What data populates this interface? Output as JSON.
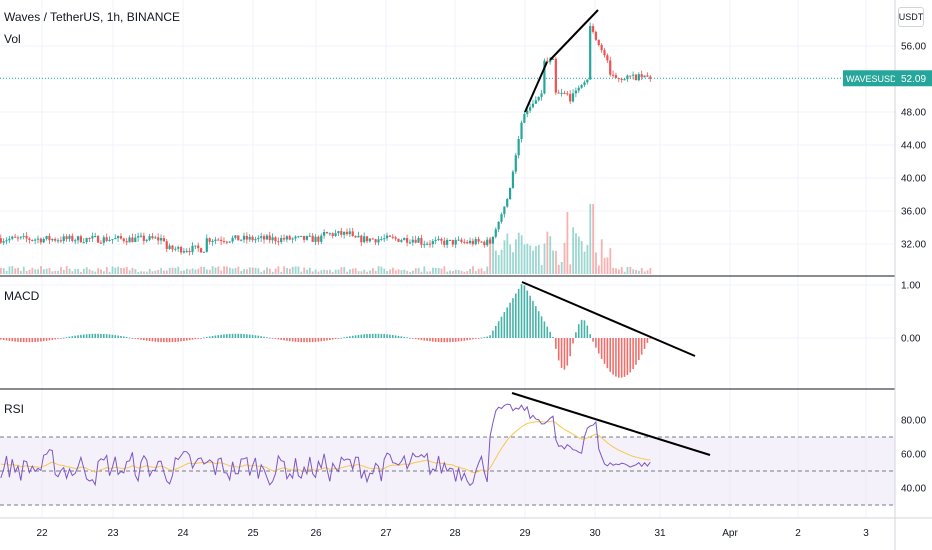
{
  "header": {
    "symbol_title": "Waves / TetherUS, 1h, BINANCE",
    "volume_label": "Vol",
    "currency_button": "USDT"
  },
  "price_pane": {
    "price_axis_labels": [
      "56.00",
      "52.00",
      "48.00",
      "44.00",
      "40.00",
      "36.00",
      "32.00"
    ],
    "current_price_tag": {
      "symbol": "WAVESUSDT",
      "price": "52.09"
    }
  },
  "macd_pane": {
    "label": "MACD",
    "axis_labels": [
      "1.00",
      "0.00"
    ]
  },
  "rsi_pane": {
    "label": "RSI",
    "axis_labels": [
      "80.00",
      "60.00",
      "40.00"
    ]
  },
  "time_axis": {
    "labels": [
      "22",
      "23",
      "24",
      "25",
      "26",
      "27",
      "28",
      "29",
      "30",
      "31",
      "Apr",
      "2",
      "3"
    ]
  },
  "colors": {
    "up": "#26a69a",
    "down": "#ef5350",
    "rsi_line": "#7e57c2",
    "rsi_ma": "#f9c74f",
    "current_price_bg": "#26a69a",
    "gridline": "#f0f3fa",
    "pane_separator": "#131722"
  },
  "chart_data": [
    {
      "type": "line",
      "title": "Waves / TetherUS, 1h, BINANCE",
      "series": [
        {
          "name": "Waves / TetherUS",
          "x": [
            "22",
            "23",
            "24",
            "25",
            "26",
            "27",
            "28",
            "29",
            "29.5",
            "30",
            "30.5",
            "31"
          ],
          "values": [
            32.9,
            32.7,
            31.2,
            31.8,
            32.4,
            33.0,
            32.3,
            47.5,
            51.0,
            58.5,
            52.0,
            52.09
          ]
        }
      ],
      "ylim": [
        30,
        59
      ]
    },
    {
      "type": "bar",
      "title": "MACD",
      "x": [
        "22",
        "23",
        "24",
        "25",
        "26",
        "27",
        "28",
        "29",
        "29.5",
        "30",
        "30.5",
        "31"
      ],
      "values": [
        0.02,
        -0.03,
        -0.06,
        0.01,
        0.09,
        -0.05,
        -0.08,
        1.05,
        -0.5,
        0.45,
        -0.7,
        -0.3
      ],
      "ylim": [
        -0.8,
        1.1
      ]
    },
    {
      "type": "line",
      "title": "RSI",
      "x": [
        "22",
        "23",
        "24",
        "25",
        "26",
        "27",
        "28",
        "29",
        "29.5",
        "30",
        "30.5",
        "31"
      ],
      "values": [
        56,
        50,
        44,
        52,
        62,
        56,
        50,
        86,
        72,
        79,
        54,
        52
      ],
      "ylim": [
        25,
        95
      ]
    }
  ]
}
